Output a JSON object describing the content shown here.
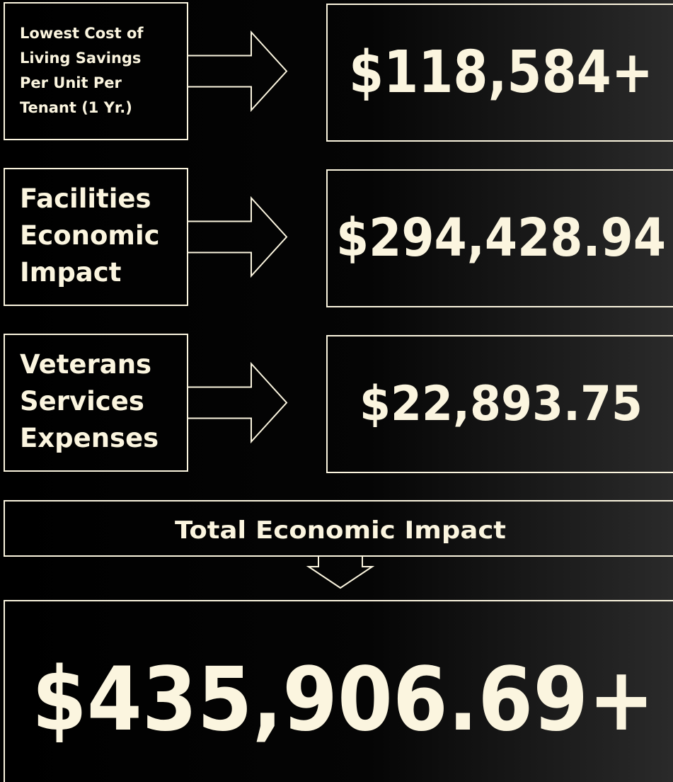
{
  "rows": [
    {
      "label": [
        "Lowest Cost of",
        "Living Savings",
        "Per Unit Per",
        "Tenant (1 Yr.)"
      ],
      "value": "$118,584+"
    },
    {
      "label": [
        "Facilities",
        "Economic",
        "Impact"
      ],
      "value": "$294,428.94"
    },
    {
      "label": [
        "Veterans",
        "Services",
        "Expenses"
      ],
      "value": "$22,893.75"
    }
  ],
  "total": {
    "label": "Total Economic Impact",
    "value": "$435,906.69+"
  }
}
